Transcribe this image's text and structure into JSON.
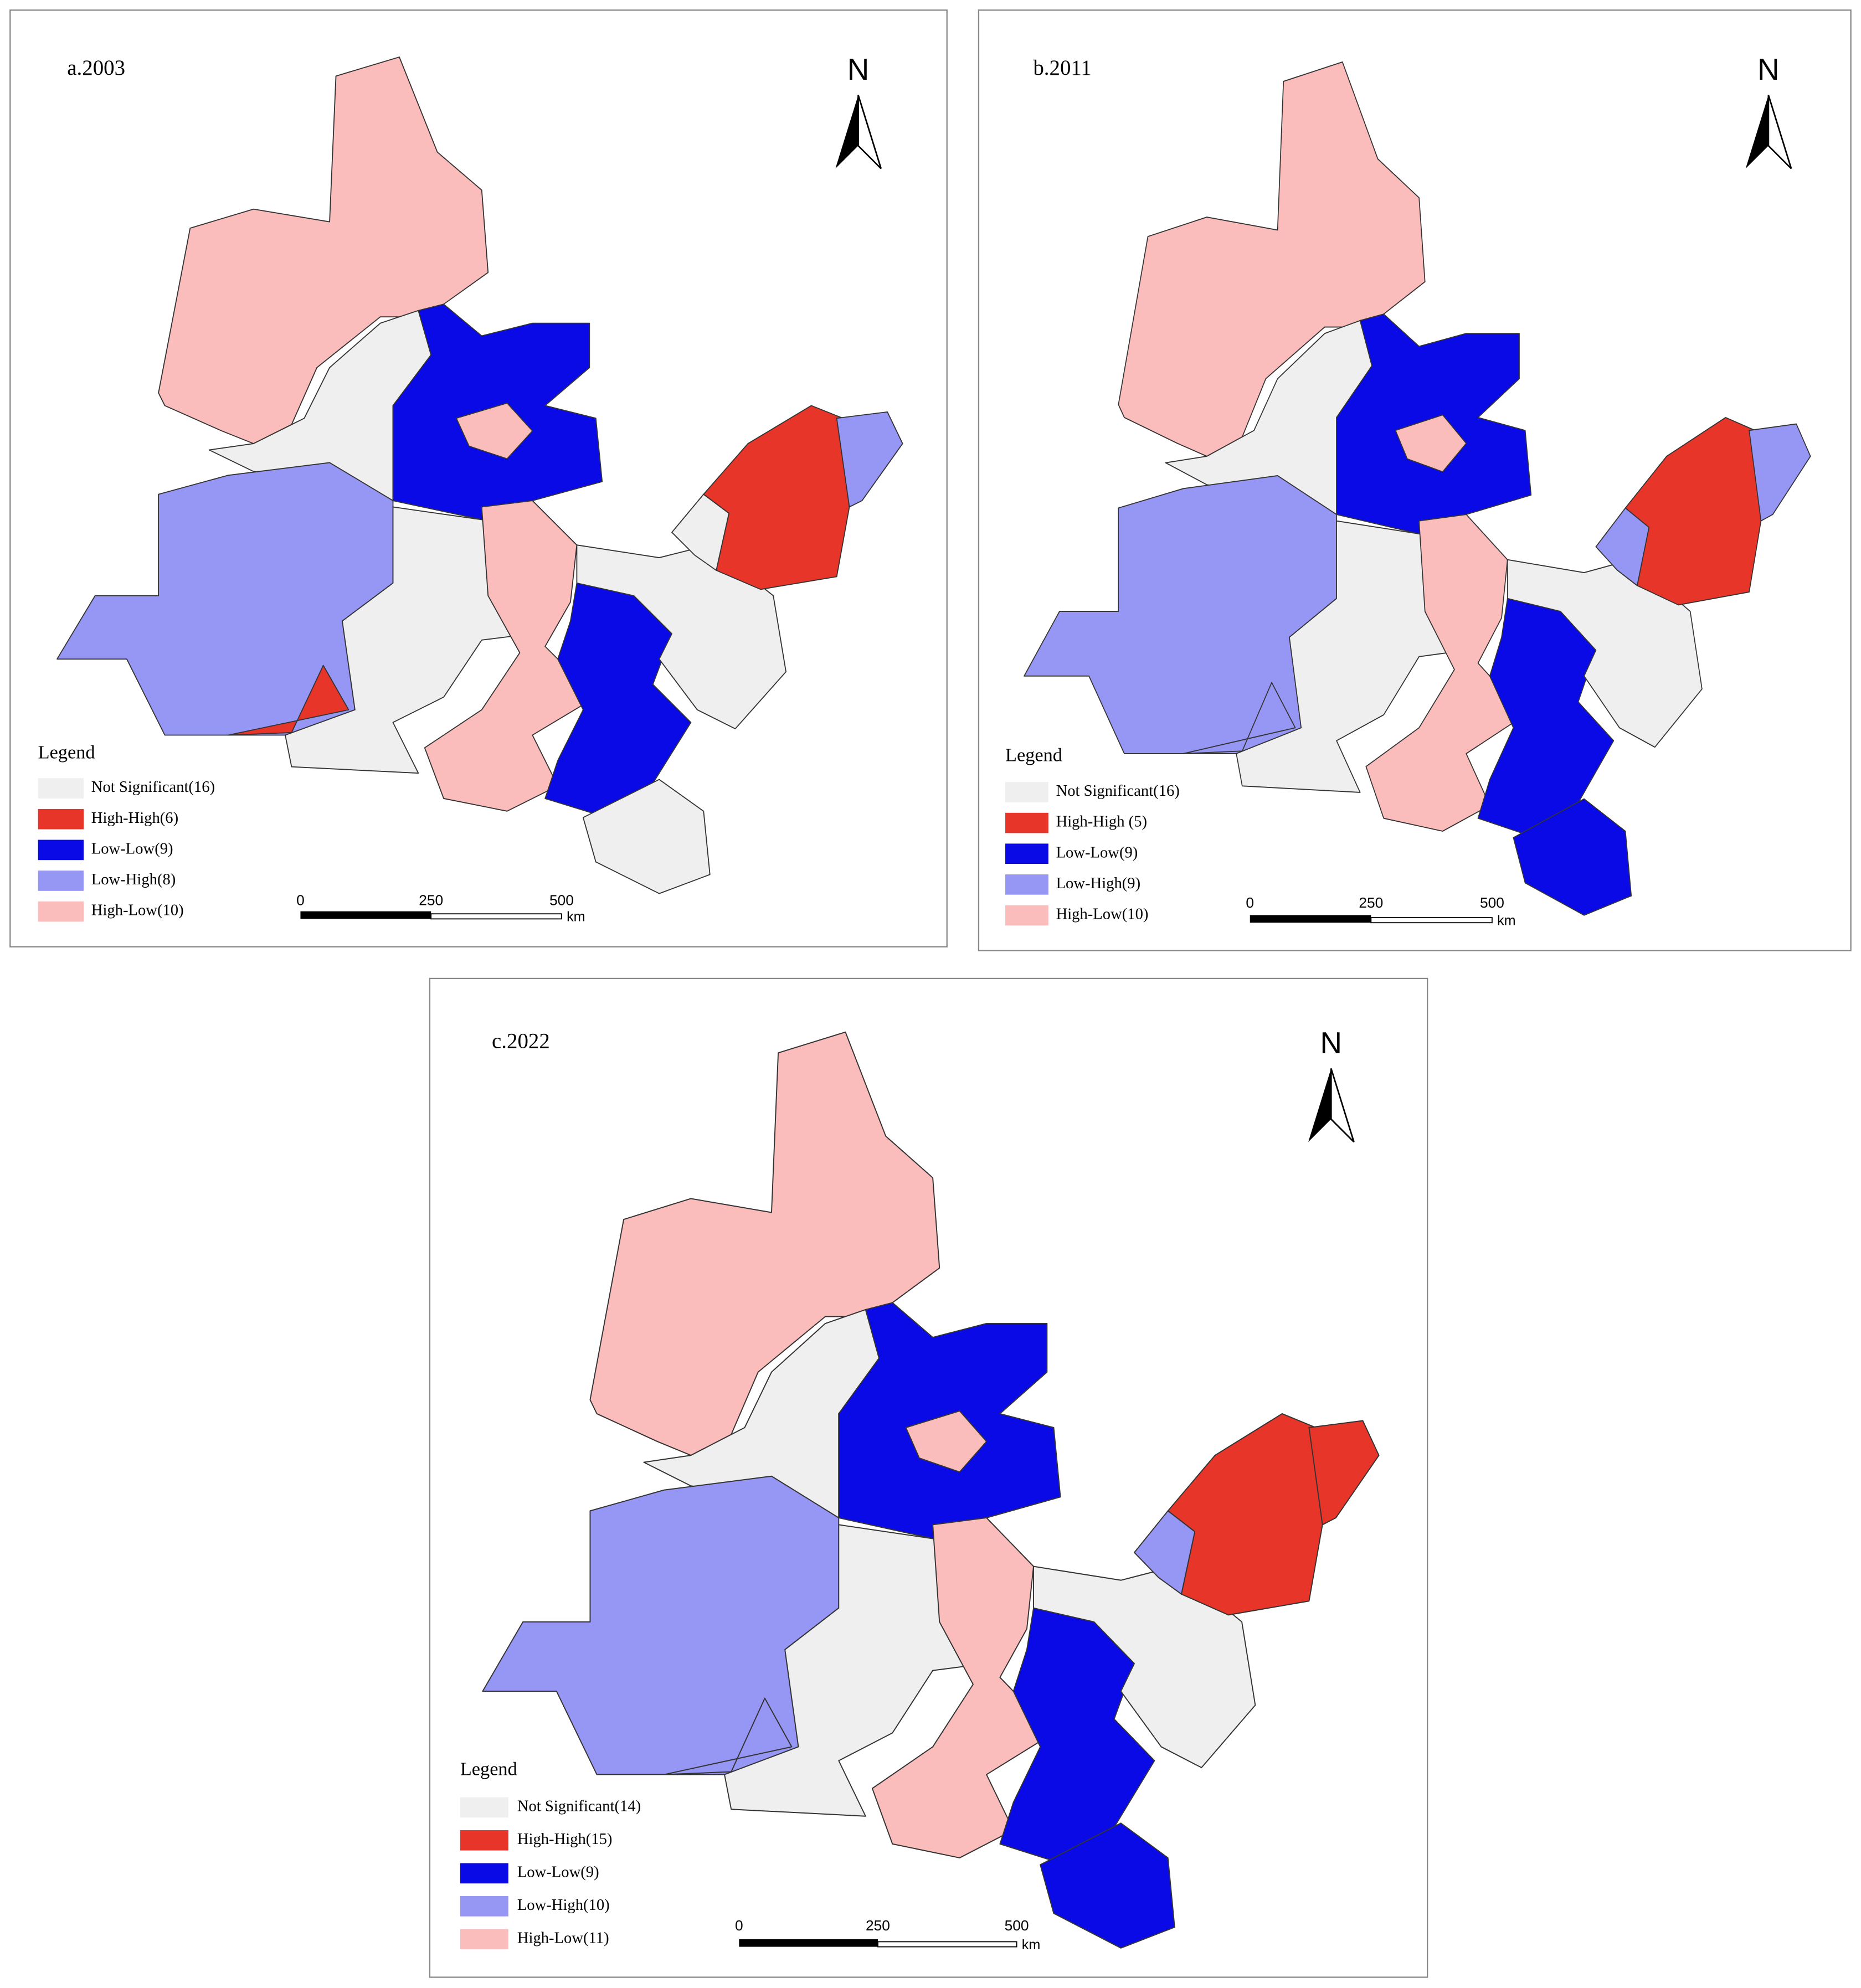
{
  "panels": [
    {
      "title": "a.2003",
      "north": "N",
      "legend_title": "Legend",
      "legend": [
        {
          "label": "Not Significant(16)",
          "color": "#efefef"
        },
        {
          "label": "High-High(6)",
          "color": "#e8352a"
        },
        {
          "label": "Low-Low(9)",
          "color": "#0a0ae6"
        },
        {
          "label": "Low-High(8)",
          "color": "#9696f5"
        },
        {
          "label": "High-Low(10)",
          "color": "#fbbcbc"
        }
      ],
      "scale": {
        "ticks": [
          0,
          250,
          500
        ],
        "unit": "km"
      }
    },
    {
      "title": "b.2011",
      "north": "N",
      "legend_title": "Legend",
      "legend": [
        {
          "label": "Not Significant(16)",
          "color": "#efefef"
        },
        {
          "label": "High-High (5)",
          "color": "#e8352a"
        },
        {
          "label": "Low-Low(9)",
          "color": "#0a0ae6"
        },
        {
          "label": "Low-High(9)",
          "color": "#9696f5"
        },
        {
          "label": "High-Low(10)",
          "color": "#fbbcbc"
        }
      ],
      "scale": {
        "ticks": [
          0,
          250,
          500
        ],
        "unit": "km"
      }
    },
    {
      "title": "c.2022",
      "north": "N",
      "legend_title": "Legend",
      "legend": [
        {
          "label": "Not Significant(14)",
          "color": "#efefef"
        },
        {
          "label": "High-High(15)",
          "color": "#e8352a"
        },
        {
          "label": "Low-Low(9)",
          "color": "#0a0ae6"
        },
        {
          "label": "Low-High(10)",
          "color": "#9696f5"
        },
        {
          "label": "High-Low(11)",
          "color": "#fbbcbc"
        }
      ],
      "scale": {
        "ticks": [
          0,
          250,
          500
        ],
        "unit": "km"
      }
    }
  ]
}
